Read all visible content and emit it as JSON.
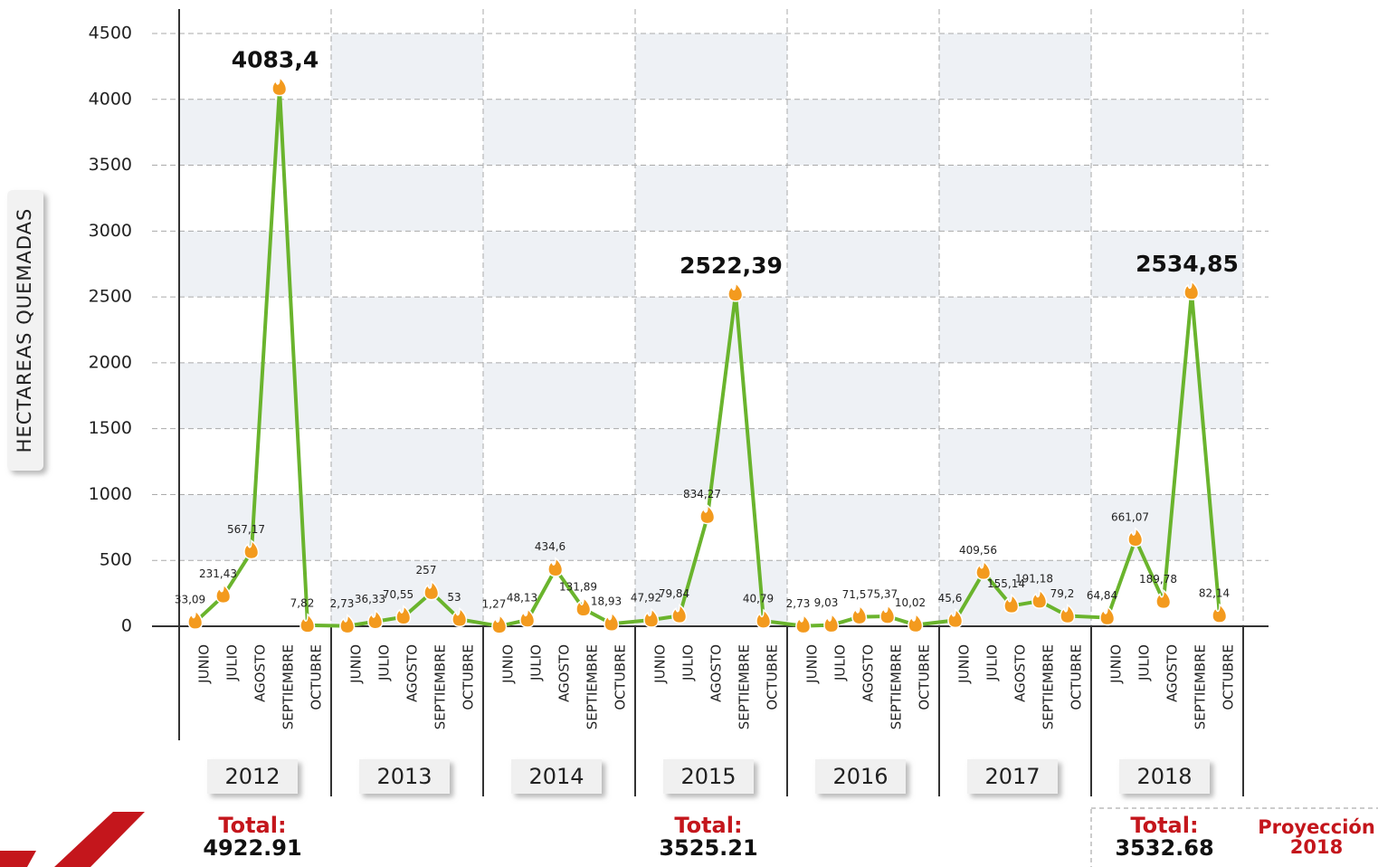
{
  "chart_data": {
    "type": "line",
    "ylabel": "HECTAREAS QUEMADAS",
    "categories": [
      "JUNIO",
      "JULIO",
      "AGOSTO",
      "SEPTIEMBRE",
      "OCTUBRE",
      "JUNIO",
      "JULIO",
      "AGOSTO",
      "SEPTIEMBRE",
      "OCTUBRE",
      "JUNIO",
      "JULIO",
      "AGOSTO",
      "SEPTIEMBRE",
      "OCTUBRE",
      "JUNIO",
      "JULIO",
      "AGOSTO",
      "SEPTIEMBRE",
      "OCTUBRE",
      "JUNIO",
      "JULIO",
      "AGOSTO",
      "SEPTIEMBRE",
      "OCTUBRE",
      "JUNIO",
      "JULIO",
      "AGOSTO",
      "SEPTIEMBRE",
      "OCTUBRE",
      "JUNIO",
      "JULIO",
      "AGOSTO",
      "SEPTIEMBRE",
      "OCTUBRE"
    ],
    "values": [
      33.09,
      231.43,
      567.17,
      4083.4,
      7.82,
      2.73,
      36.33,
      70.55,
      257,
      53,
      1.27,
      48.13,
      434.6,
      131.89,
      18.93,
      47.92,
      79.84,
      834.27,
      2522.39,
      40.79,
      2.73,
      9.03,
      71.5,
      75.37,
      10.02,
      45.6,
      409.56,
      155.14,
      191.18,
      79.2,
      64.84,
      661.07,
      189.78,
      2534.85,
      82.14
    ],
    "value_labels": [
      "33,09",
      "231,43",
      "567,17",
      "4083,4",
      "7,82",
      "2,73",
      "36,33",
      "70,55",
      "257",
      "53",
      "1,27",
      "48,13",
      "434,6",
      "131,89",
      "18,93",
      "47,92",
      "79,84",
      "834,27",
      "2522,39",
      "40,79",
      "2,73",
      "9,03",
      "71,5",
      "75,37",
      "10,02",
      "45,6",
      "409,56",
      "155,14",
      "191,18",
      "79,2",
      "64,84",
      "661,07",
      "189,78",
      "2534,85",
      "82,14"
    ],
    "color": "#6ab42d",
    "marker_color": "#f39a1e",
    "years": [
      "2012",
      "2013",
      "2014",
      "2015",
      "2016",
      "2017",
      "2018"
    ],
    "totals": [
      {
        "year": "2012",
        "label": "Total:",
        "value": 4922.91
      },
      {
        "year": "2015",
        "label": "Total:",
        "value": 3525.21
      },
      {
        "year": "2018",
        "label": "Total:",
        "value": 3532.68
      }
    ],
    "projection": [
      "Proyección",
      "2018"
    ],
    "ylim": [
      0,
      4500
    ],
    "yticks": [
      0,
      500,
      1000,
      1500,
      2000,
      2500,
      3000,
      3500,
      4000,
      4500
    ],
    "grid": true
  }
}
